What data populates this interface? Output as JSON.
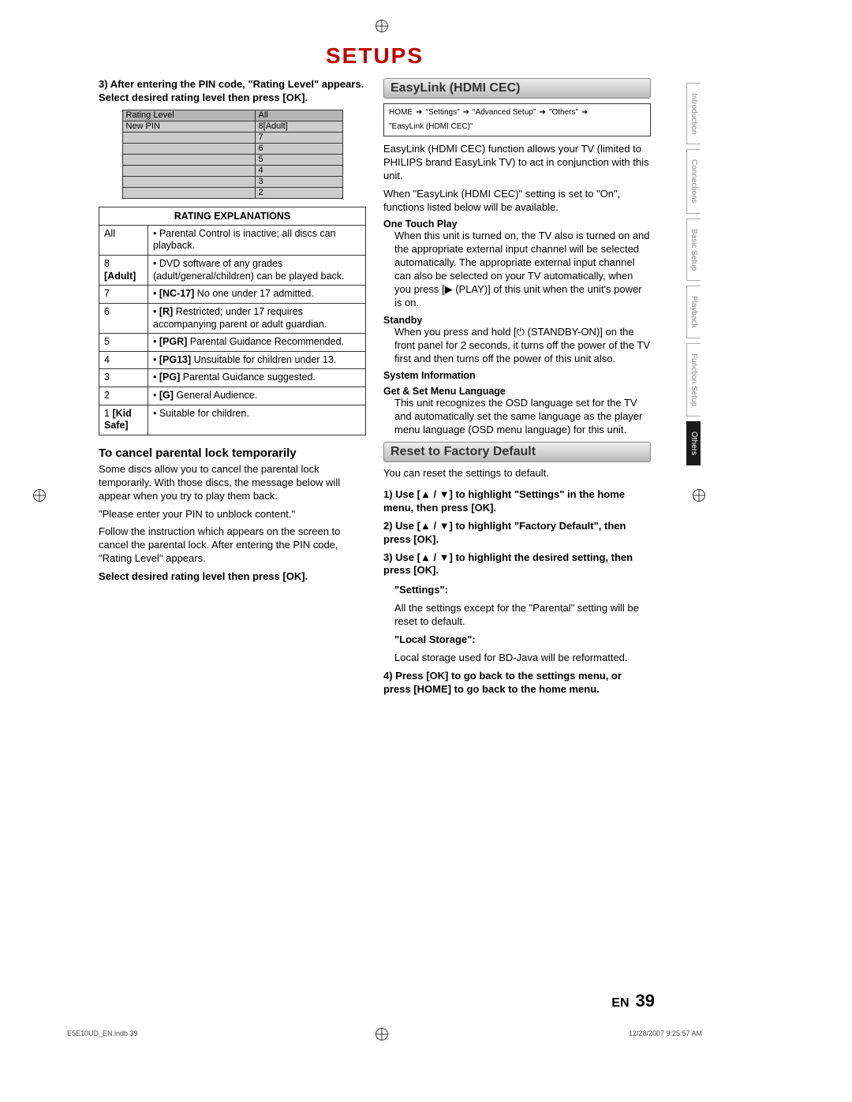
{
  "title": "SETUPS",
  "left": {
    "intro": "3) After entering the PIN code, \"Rating Level\" appears. Select desired rating level then press [OK].",
    "small_table": {
      "rows": [
        [
          "Rating Level",
          "All"
        ],
        [
          "New PIN",
          "8[Adult]"
        ],
        [
          "",
          "7"
        ],
        [
          "",
          "6"
        ],
        [
          "",
          "5"
        ],
        [
          "",
          "4"
        ],
        [
          "",
          "3"
        ],
        [
          "",
          "2"
        ]
      ]
    },
    "ratings_header": "RATING EXPLANATIONS",
    "ratings": [
      {
        "level": "All",
        "desc": "• Parental Control is inactive; all discs can playback."
      },
      {
        "level": "8 [Adult]",
        "desc": "• DVD software of any grades (adult/general/children) can be played back."
      },
      {
        "level": "7",
        "desc": "• [NC-17] No one under 17 admitted."
      },
      {
        "level": "6",
        "desc": "• [R] Restricted; under 17 requires accompanying parent or adult guardian."
      },
      {
        "level": "5",
        "desc": "• [PGR] Parental Guidance Recommended."
      },
      {
        "level": "4",
        "desc": "• [PG13] Unsuitable for children under 13."
      },
      {
        "level": "3",
        "desc": "• [PG] Parental Guidance suggested."
      },
      {
        "level": "2",
        "desc": "• [G] General Audience."
      },
      {
        "level": "1 [Kid Safe]",
        "desc": "• Suitable for children."
      }
    ],
    "cancel_head": "To cancel parental lock temporarily",
    "cancel_p1": "Some discs allow you to cancel the parental lock temporarily. With those discs, the message below will appear when you try to play them back.",
    "cancel_p2": "\"Please enter your PIN to unblock content.\"",
    "cancel_p3": "Follow the instruction which appears on the screen to cancel the parental lock. After entering the PIN code, \"Rating Level\" appears.",
    "cancel_p4": "Select desired rating level then press [OK]."
  },
  "right": {
    "easylink_head": "EasyLink (HDMI CEC)",
    "breadcrumb": [
      "HOME",
      "\"Settings\"",
      "\"Advanced Setup\"",
      "\"Others\"",
      "\"EasyLink (HDMI CEC)\""
    ],
    "easylink_p1": "EasyLink (HDMI CEC) function allows your TV (limited to PHILIPS brand EasyLink TV) to act in conjunction with this unit.",
    "easylink_p2": "When \"EasyLink (HDMI CEC)\" setting is set to \"On\", functions listed below will be available.",
    "otp_title": "One Touch Play",
    "otp_body": "When this unit is turned on, the TV also is turned on and the appropriate external input channel will be selected automatically. The appropriate external input channel can also be selected on your TV automatically, when you press [▶ (PLAY)] of this unit when the unit's power is on.",
    "standby_title": "Standby",
    "standby_body": "When you press and hold [⏻ (STANDBY-ON)] on the front panel for 2 seconds, it turns off the power of the TV first and then turns off the power of this unit also.",
    "sysinfo_title": "System Information",
    "getset_title": "Get & Set Menu Language",
    "getset_body": "This unit recognizes the OSD language set for the TV and automatically set the same language as the player menu language (OSD menu language) for this unit.",
    "reset_head": "Reset to Factory Default",
    "reset_intro": "You can reset the settings to default.",
    "reset_s1": "1) Use [▲ / ▼] to highlight \"Settings\" in the home menu, then press [OK].",
    "reset_s2": "2) Use [▲ / ▼] to highlight \"Factory Default\", then press [OK].",
    "reset_s3": "3) Use [▲ / ▼] to highlight the desired setting, then press [OK].",
    "settings_label": "\"Settings\":",
    "settings_body": "All the settings except for the \"Parental\" setting will be reset to default.",
    "local_label": "\"Local Storage\":",
    "local_body": "Local storage used for BD-Java will be reformatted.",
    "reset_s4": "4) Press [OK] to go back to the settings menu, or press [HOME] to go back to the home menu."
  },
  "tabs": [
    "Introduction",
    "Connections",
    "Basic Setup",
    "Playback",
    "Function Setup",
    "Others"
  ],
  "active_tab_index": 5,
  "page_lang": "EN",
  "page_number": "39",
  "footer_left": "E5E10UD_EN.indb   39",
  "footer_right": "12/28/2007   9:25:57 AM"
}
